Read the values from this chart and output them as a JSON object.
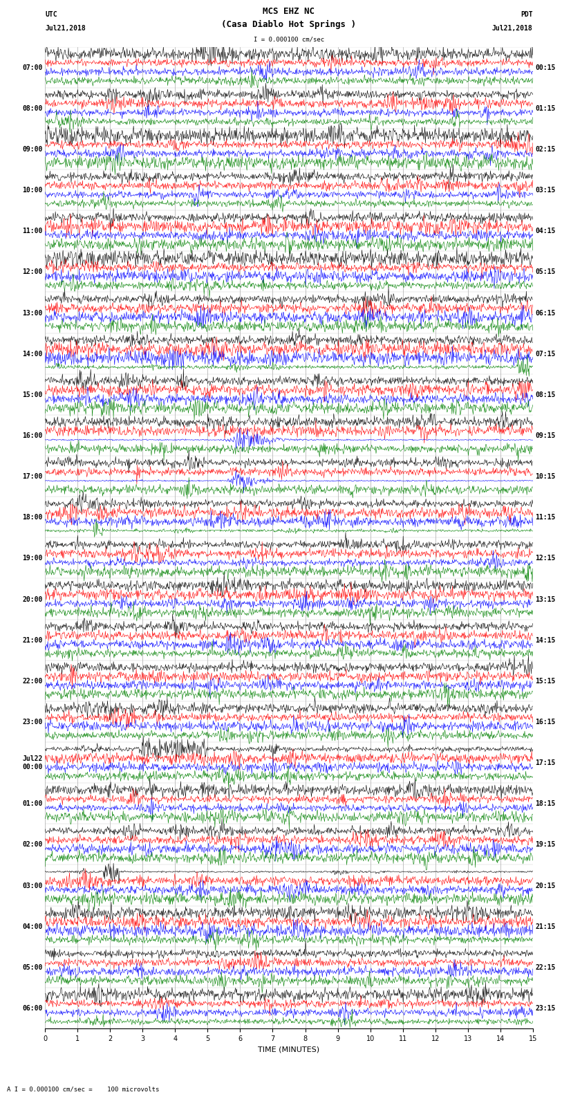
{
  "title_line1": "MCS EHZ NC",
  "title_line2": "(Casa Diablo Hot Springs )",
  "scale_label": "I = 0.000100 cm/sec",
  "bottom_label": "A I = 0.000100 cm/sec =    100 microvolts",
  "xlabel": "TIME (MINUTES)",
  "utc_times": [
    "07:00",
    "08:00",
    "09:00",
    "10:00",
    "11:00",
    "12:00",
    "13:00",
    "14:00",
    "15:00",
    "16:00",
    "17:00",
    "18:00",
    "19:00",
    "20:00",
    "21:00",
    "22:00",
    "23:00",
    "Jul22\n00:00",
    "01:00",
    "02:00",
    "03:00",
    "04:00",
    "05:00",
    "06:00"
  ],
  "pdt_times": [
    "00:15",
    "01:15",
    "02:15",
    "03:15",
    "04:15",
    "05:15",
    "06:15",
    "07:15",
    "08:15",
    "09:15",
    "10:15",
    "11:15",
    "12:15",
    "13:15",
    "14:15",
    "15:15",
    "16:15",
    "17:15",
    "18:15",
    "19:15",
    "20:15",
    "21:15",
    "22:15",
    "23:15"
  ],
  "n_rows": 24,
  "traces_per_row": 4,
  "trace_colors": [
    "black",
    "red",
    "blue",
    "green"
  ],
  "n_minutes": 15,
  "samples_per_minute": 60,
  "bg_color": "white",
  "font_size_title": 9,
  "font_size_labels": 7,
  "font_size_ticks": 7
}
